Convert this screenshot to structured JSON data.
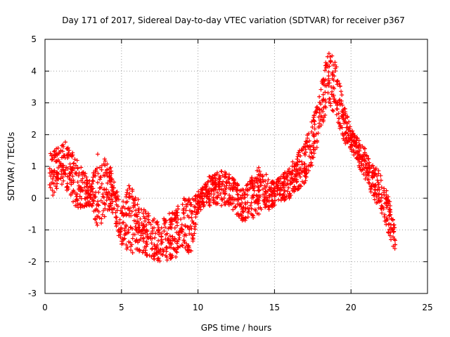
{
  "chart_data": {
    "type": "scatter",
    "title": "Day 171 of 2017, Sidereal Day-to-day VTEC variation (SDTVAR) for receiver p367",
    "xlabel": "GPS time / hours",
    "ylabel": "SDTVAR / TECUs",
    "xlim": [
      0,
      25
    ],
    "ylim": [
      -3,
      5
    ],
    "xticks": [
      0,
      5,
      10,
      15,
      20,
      25
    ],
    "yticks": [
      -3,
      -2,
      -1,
      0,
      1,
      2,
      3,
      4,
      5
    ],
    "grid": true,
    "marker": "+",
    "colors": {
      "series": "#ff0000",
      "grid": "#a0a0a0",
      "axis": "#000000"
    },
    "series": [
      {
        "name": "SDTVAR",
        "envelope": [
          {
            "x": 0.3,
            "y": [
              -0.1,
              1.5
            ]
          },
          {
            "x": 1.0,
            "y": [
              0.5,
              1.6
            ]
          },
          {
            "x": 1.3,
            "y": [
              0.3,
              1.8
            ]
          },
          {
            "x": 2.0,
            "y": [
              -0.3,
              1.3
            ]
          },
          {
            "x": 3.0,
            "y": [
              -0.3,
              0.5
            ]
          },
          {
            "x": 3.5,
            "y": [
              -1.0,
              1.5
            ]
          },
          {
            "x": 4.3,
            "y": [
              -0.3,
              1.0
            ]
          },
          {
            "x": 5.0,
            "y": [
              -1.5,
              -0.2
            ]
          },
          {
            "x": 5.5,
            "y": [
              -1.7,
              0.5
            ]
          },
          {
            "x": 6.5,
            "y": [
              -1.8,
              -0.3
            ]
          },
          {
            "x": 7.5,
            "y": [
              -2.0,
              -0.8
            ]
          },
          {
            "x": 8.5,
            "y": [
              -1.9,
              -0.2
            ]
          },
          {
            "x": 9.0,
            "y": [
              -1.5,
              0.0
            ]
          },
          {
            "x": 9.5,
            "y": [
              -1.8,
              0.0
            ]
          },
          {
            "x": 10.0,
            "y": [
              -0.5,
              0.2
            ]
          },
          {
            "x": 10.5,
            "y": [
              -0.2,
              0.5
            ]
          },
          {
            "x": 11.0,
            "y": [
              -0.3,
              0.9
            ]
          },
          {
            "x": 12.0,
            "y": [
              -0.2,
              0.8
            ]
          },
          {
            "x": 12.5,
            "y": [
              -0.5,
              0.5
            ]
          },
          {
            "x": 13.0,
            "y": [
              -0.8,
              0.3
            ]
          },
          {
            "x": 14.0,
            "y": [
              -0.5,
              1.0
            ]
          },
          {
            "x": 15.0,
            "y": [
              -0.3,
              0.5
            ]
          },
          {
            "x": 16.0,
            "y": [
              0.0,
              1.0
            ]
          },
          {
            "x": 17.0,
            "y": [
              0.5,
              1.8
            ]
          },
          {
            "x": 17.5,
            "y": [
              1.0,
              2.5
            ]
          },
          {
            "x": 18.0,
            "y": [
              2.0,
              3.5
            ]
          },
          {
            "x": 18.5,
            "y": [
              3.0,
              4.7
            ]
          },
          {
            "x": 19.0,
            "y": [
              2.5,
              4.3
            ]
          },
          {
            "x": 19.5,
            "y": [
              1.8,
              3.0
            ]
          },
          {
            "x": 20.0,
            "y": [
              1.5,
              2.2
            ]
          },
          {
            "x": 21.0,
            "y": [
              0.5,
              1.5
            ]
          },
          {
            "x": 21.5,
            "y": [
              0.0,
              1.0
            ]
          },
          {
            "x": 22.0,
            "y": [
              -0.5,
              0.8
            ]
          },
          {
            "x": 22.5,
            "y": [
              -1.2,
              0.0
            ]
          },
          {
            "x": 22.9,
            "y": [
              -1.7,
              -1.0
            ]
          }
        ]
      }
    ]
  }
}
